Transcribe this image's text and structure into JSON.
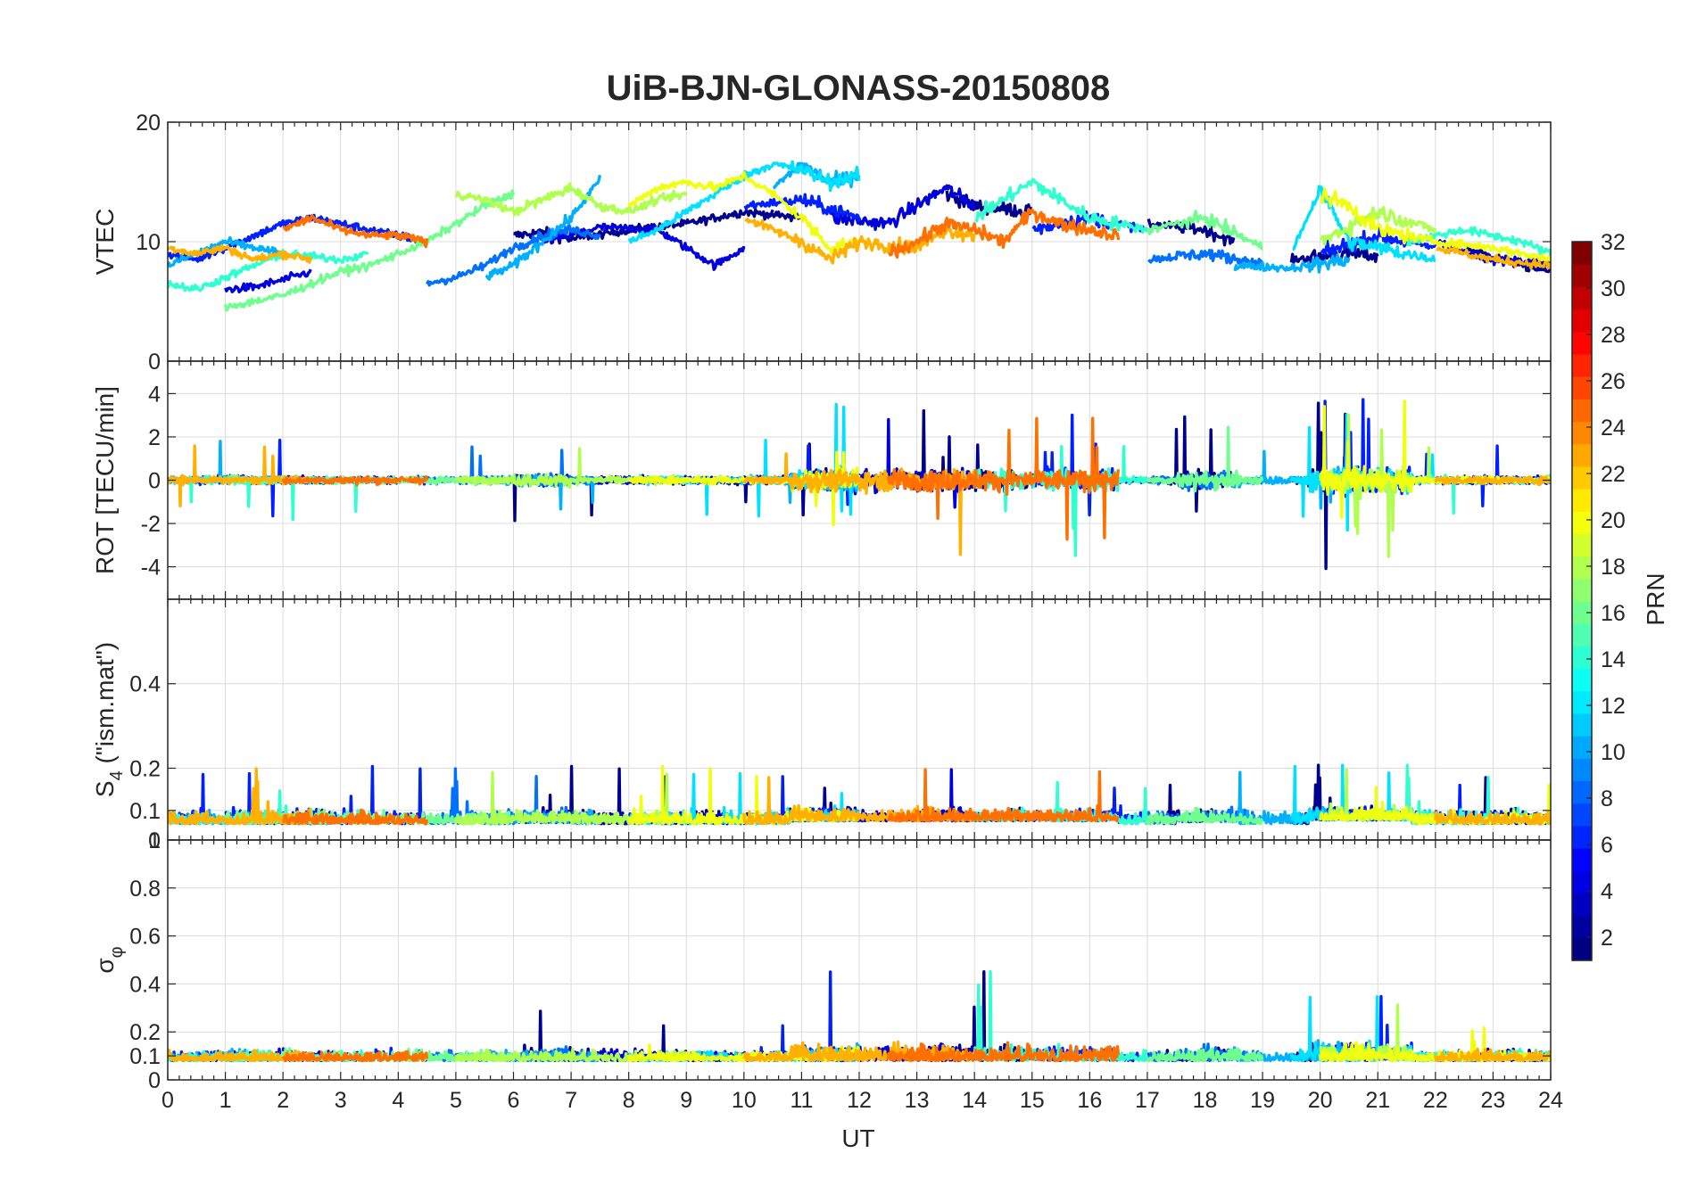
{
  "chart_data": {
    "type": "line",
    "title": "UiB-BJN-GLONASS-20150808",
    "xlabel": "UT",
    "xlim": [
      0,
      24
    ],
    "x_ticks": [
      "0",
      "1",
      "2",
      "3",
      "4",
      "5",
      "6",
      "7",
      "8",
      "9",
      "10",
      "11",
      "12",
      "13",
      "14",
      "15",
      "16",
      "17",
      "18",
      "19",
      "20",
      "21",
      "22",
      "23",
      "24"
    ],
    "panels": [
      {
        "id": "vtec",
        "ylabel": "VTEC",
        "ylim": [
          0,
          20
        ],
        "y_ticks": [
          {
            "v": 0,
            "t": "0"
          },
          {
            "v": 10,
            "t": "10"
          },
          {
            "v": 20,
            "t": "20"
          }
        ],
        "minor_y_ticks": []
      },
      {
        "id": "rot",
        "ylabel": "ROT [TECU/min]",
        "ylim": [
          -5.5,
          5.5
        ],
        "y_ticks": [
          {
            "v": -4,
            "t": "-4"
          },
          {
            "v": -2,
            "t": "-2"
          },
          {
            "v": 0,
            "t": "0"
          },
          {
            "v": 2,
            "t": "2"
          },
          {
            "v": 4,
            "t": "4"
          }
        ],
        "minor_y_ticks": []
      },
      {
        "id": "s4",
        "ylabel_main": "S",
        "ylabel_sub": "4",
        "ylabel_rest": " (\"ism.mat\")",
        "ylim": [
          0.03,
          0.6
        ],
        "y_ticks": [
          {
            "v": 0.1,
            "t": "0.1"
          },
          {
            "v": 0.2,
            "t": "0.2"
          },
          {
            "v": 0.4,
            "t": "0.4"
          }
        ],
        "minor_y_ticks": []
      },
      {
        "id": "sigma",
        "ylabel_main": "σ",
        "ylabel_sub": "φ",
        "ylim": [
          0,
          1
        ],
        "y_ticks": [
          {
            "v": 0,
            "t": "0"
          },
          {
            "v": 0.1,
            "t": "0.1"
          },
          {
            "v": 0.2,
            "t": "0.2"
          },
          {
            "v": 0.4,
            "t": "0.4"
          },
          {
            "v": 0.6,
            "t": "0.6"
          },
          {
            "v": 0.8,
            "t": "0.8"
          },
          {
            "v": 1,
            "t": "1"
          }
        ],
        "overlap_tick_label": "0"
      }
    ],
    "colorbar": {
      "label": "PRN",
      "range": [
        1,
        32
      ],
      "colormap": "jet",
      "ticks": [
        "2",
        "4",
        "6",
        "8",
        "10",
        "12",
        "14",
        "16",
        "18",
        "20",
        "22",
        "24",
        "26",
        "28",
        "30",
        "32"
      ]
    },
    "series": [
      {
        "prn": 1,
        "color": "#00008f",
        "segments": [
          [
            6.0,
            10.5
          ],
          [
            10.5,
            12.0
          ],
          [
            13.0,
            15.0
          ],
          [
            17.0,
            18.5
          ],
          [
            19.5,
            21.0
          ],
          [
            22.5,
            24.0
          ]
        ],
        "vtec": [
          [
            6.0,
            10.5
          ],
          [
            6.5,
            10.8
          ],
          [
            7.0,
            10.2
          ],
          [
            8.0,
            11.0
          ],
          [
            9.0,
            11.5
          ],
          [
            10.0,
            12.5
          ],
          [
            11.0,
            12.0
          ],
          [
            13.5,
            14.0
          ],
          [
            14.0,
            13.0
          ],
          [
            15.0,
            12.5
          ],
          [
            17.0,
            11.5
          ],
          [
            18.0,
            11.0
          ],
          [
            18.5,
            10.0
          ],
          [
            19.5,
            8.5
          ],
          [
            20.5,
            9.0
          ],
          [
            21.0,
            8.8
          ],
          [
            22.5,
            9.5
          ],
          [
            23.5,
            8.0
          ],
          [
            24.0,
            7.5
          ]
        ]
      },
      {
        "prn": 3,
        "color": "#0000df",
        "segments": [
          [
            1.0,
            3.0
          ],
          [
            6.5,
            10.0
          ],
          [
            11.5,
            14.0
          ],
          [
            22.0,
            24.0
          ]
        ],
        "vtec": [
          [
            1.0,
            6.0
          ],
          [
            1.5,
            6.2
          ],
          [
            2.0,
            6.8
          ],
          [
            2.5,
            7.5
          ],
          [
            6.5,
            10.0
          ],
          [
            7.5,
            11.2
          ],
          [
            8.5,
            11.0
          ],
          [
            9.0,
            9.5
          ],
          [
            9.5,
            8.0
          ],
          [
            10.0,
            9.5
          ],
          [
            11.5,
            12.0
          ],
          [
            12.5,
            11.5
          ],
          [
            13.5,
            14.5
          ],
          [
            14.0,
            13.0
          ],
          [
            22.0,
            10.0
          ],
          [
            23.0,
            8.5
          ],
          [
            24.0,
            8.2
          ]
        ]
      },
      {
        "prn": 5,
        "color": "#0020ff",
        "segments": [
          [
            0.0,
            4.5
          ],
          [
            10.0,
            12.0
          ],
          [
            15.0,
            17.0
          ],
          [
            20.0,
            23.5
          ]
        ],
        "vtec": [
          [
            0.0,
            9.0
          ],
          [
            0.5,
            8.5
          ],
          [
            1.0,
            9.5
          ],
          [
            2.0,
            11.5
          ],
          [
            2.5,
            12.0
          ],
          [
            3.0,
            11.5
          ],
          [
            4.0,
            10.5
          ],
          [
            4.5,
            10.0
          ],
          [
            10.0,
            13.0
          ],
          [
            11.0,
            13.5
          ],
          [
            12.0,
            12.0
          ],
          [
            15.0,
            11.0
          ],
          [
            16.0,
            12.0
          ],
          [
            17.0,
            11.0
          ],
          [
            20.0,
            9.0
          ],
          [
            21.0,
            10.5
          ],
          [
            22.0,
            9.5
          ],
          [
            23.5,
            8.0
          ]
        ]
      },
      {
        "prn": 8,
        "color": "#0070ff",
        "segments": [
          [
            4.5,
            7.5
          ],
          [
            17.0,
            19.0
          ]
        ],
        "vtec": [
          [
            4.5,
            6.5
          ],
          [
            5.0,
            7.0
          ],
          [
            5.5,
            8.0
          ],
          [
            6.0,
            9.5
          ],
          [
            6.5,
            10.5
          ],
          [
            7.0,
            11.0
          ],
          [
            7.5,
            10.5
          ],
          [
            17.0,
            8.5
          ],
          [
            18.0,
            9.0
          ],
          [
            19.0,
            8.2
          ]
        ]
      },
      {
        "prn": 10,
        "color": "#00b0ff",
        "segments": [
          [
            0.0,
            2.0
          ],
          [
            5.5,
            7.5
          ],
          [
            10.5,
            12.0
          ],
          [
            18.5,
            20.5
          ]
        ],
        "vtec": [
          [
            0.0,
            8.0
          ],
          [
            0.5,
            9.0
          ],
          [
            1.0,
            10.0
          ],
          [
            2.0,
            9.0
          ],
          [
            5.5,
            7.0
          ],
          [
            6.0,
            8.0
          ],
          [
            6.5,
            10.0
          ],
          [
            7.0,
            12.0
          ],
          [
            7.5,
            15.2
          ],
          [
            10.5,
            14.5
          ],
          [
            11.0,
            16.5
          ],
          [
            11.5,
            15.0
          ],
          [
            12.0,
            15.5
          ],
          [
            18.5,
            8.0
          ],
          [
            19.5,
            7.8
          ],
          [
            20.5,
            8.5
          ]
        ]
      },
      {
        "prn": 12,
        "color": "#00e0ff",
        "segments": [
          [
            8.0,
            12.0
          ],
          [
            19.5,
            22.0
          ]
        ],
        "vtec": [
          [
            8.0,
            10.0
          ],
          [
            8.5,
            11.0
          ],
          [
            9.0,
            12.5
          ],
          [
            9.5,
            14.0
          ],
          [
            10.0,
            15.5
          ],
          [
            10.5,
            16.5
          ],
          [
            11.0,
            16.0
          ],
          [
            11.5,
            15.0
          ],
          [
            12.0,
            15.5
          ],
          [
            19.5,
            9.0
          ],
          [
            20.0,
            14.5
          ],
          [
            20.5,
            10.0
          ],
          [
            21.0,
            9.5
          ],
          [
            22.0,
            8.5
          ]
        ]
      },
      {
        "prn": 14,
        "color": "#30ffcf",
        "segments": [
          [
            0.0,
            3.5
          ],
          [
            14.0,
            17.0
          ],
          [
            21.5,
            24.0
          ]
        ],
        "vtec": [
          [
            0.0,
            6.5
          ],
          [
            0.5,
            6.0
          ],
          [
            1.0,
            7.0
          ],
          [
            1.5,
            8.0
          ],
          [
            2.0,
            9.0
          ],
          [
            3.0,
            8.5
          ],
          [
            3.5,
            9.0
          ],
          [
            14.0,
            12.0
          ],
          [
            14.5,
            13.5
          ],
          [
            15.0,
            15.0
          ],
          [
            16.0,
            12.0
          ],
          [
            17.0,
            11.0
          ],
          [
            21.5,
            10.0
          ],
          [
            22.5,
            11.0
          ],
          [
            23.5,
            10.0
          ],
          [
            24.0,
            9.0
          ]
        ]
      },
      {
        "prn": 16,
        "color": "#70ff8f",
        "segments": [
          [
            1.0,
            6.0
          ],
          [
            17.0,
            19.0
          ]
        ],
        "vtec": [
          [
            1.0,
            4.5
          ],
          [
            1.5,
            5.0
          ],
          [
            2.0,
            5.5
          ],
          [
            2.5,
            6.5
          ],
          [
            3.0,
            7.5
          ],
          [
            3.5,
            8.0
          ],
          [
            4.0,
            9.0
          ],
          [
            4.5,
            10.0
          ],
          [
            5.0,
            11.5
          ],
          [
            5.5,
            13.0
          ],
          [
            6.0,
            14.0
          ],
          [
            17.0,
            11.0
          ],
          [
            18.0,
            12.0
          ],
          [
            19.0,
            9.5
          ]
        ]
      },
      {
        "prn": 18,
        "color": "#b0ff4f",
        "segments": [
          [
            5.0,
            9.0
          ],
          [
            20.0,
            22.0
          ]
        ],
        "vtec": [
          [
            5.0,
            14.0
          ],
          [
            5.5,
            13.5
          ],
          [
            6.0,
            12.5
          ],
          [
            6.5,
            13.5
          ],
          [
            7.0,
            14.5
          ],
          [
            7.5,
            13.0
          ],
          [
            8.0,
            12.5
          ],
          [
            8.5,
            13.5
          ],
          [
            9.0,
            14.0
          ],
          [
            20.0,
            10.0
          ],
          [
            21.0,
            12.5
          ],
          [
            22.0,
            11.0
          ]
        ]
      },
      {
        "prn": 20,
        "color": "#f0ff0f",
        "segments": [
          [
            8.0,
            12.0
          ],
          [
            20.0,
            24.0
          ]
        ],
        "vtec": [
          [
            8.0,
            13.0
          ],
          [
            8.5,
            14.5
          ],
          [
            9.0,
            15.0
          ],
          [
            9.5,
            14.5
          ],
          [
            10.0,
            15.5
          ],
          [
            10.5,
            14.0
          ],
          [
            11.0,
            12.0
          ],
          [
            11.5,
            9.5
          ],
          [
            12.0,
            10.0
          ],
          [
            20.0,
            14.0
          ],
          [
            20.5,
            13.0
          ],
          [
            21.0,
            11.0
          ],
          [
            22.0,
            10.0
          ],
          [
            23.0,
            9.5
          ],
          [
            24.0,
            8.5
          ]
        ]
      },
      {
        "prn": 22,
        "color": "#ffb000",
        "segments": [
          [
            0.0,
            2.5
          ],
          [
            10.0,
            14.0
          ],
          [
            22.0,
            24.0
          ]
        ],
        "vtec": [
          [
            0.0,
            9.5
          ],
          [
            0.5,
            9.0
          ],
          [
            1.0,
            9.5
          ],
          [
            1.5,
            8.5
          ],
          [
            2.0,
            9.0
          ],
          [
            2.5,
            8.5
          ],
          [
            10.0,
            12.0
          ],
          [
            11.0,
            10.0
          ],
          [
            11.5,
            8.5
          ],
          [
            12.0,
            10.0
          ],
          [
            13.0,
            9.5
          ],
          [
            13.5,
            11.0
          ],
          [
            14.0,
            10.5
          ],
          [
            22.0,
            9.5
          ],
          [
            23.0,
            8.5
          ],
          [
            24.0,
            8.0
          ]
        ]
      },
      {
        "prn": 24,
        "color": "#ff7000",
        "segments": [
          [
            2.0,
            4.5
          ],
          [
            12.5,
            16.5
          ]
        ],
        "vtec": [
          [
            2.0,
            11.0
          ],
          [
            2.5,
            12.0
          ],
          [
            3.0,
            11.0
          ],
          [
            3.5,
            10.5
          ],
          [
            4.0,
            10.5
          ],
          [
            4.5,
            10.0
          ],
          [
            12.5,
            9.0
          ],
          [
            13.0,
            10.0
          ],
          [
            13.5,
            11.5
          ],
          [
            14.0,
            11.0
          ],
          [
            14.5,
            10.0
          ],
          [
            15.0,
            12.5
          ],
          [
            15.5,
            11.5
          ],
          [
            16.0,
            11.0
          ],
          [
            16.5,
            10.5
          ]
        ]
      }
    ]
  }
}
